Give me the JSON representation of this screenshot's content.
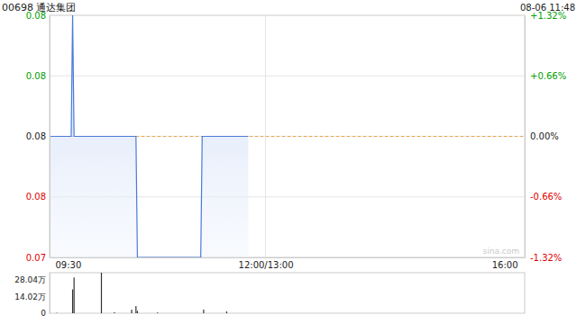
{
  "chart_data": [
    {
      "type": "line",
      "title": "00698 通达集团",
      "subtitle": "08-06 11:48",
      "annotation": "sina.com",
      "x": [
        0,
        15,
        16,
        17,
        60,
        61,
        105,
        106,
        138
      ],
      "series": [
        {
          "name": "通达集团",
          "color": "#4a7bd8",
          "values": [
            0.076,
            0.076,
            0.077,
            0.076,
            0.076,
            0.075,
            0.075,
            0.076,
            0.076
          ]
        }
      ],
      "xlim": [
        0,
        330
      ],
      "xticks": [
        {
          "value": 0,
          "label": "09:30"
        },
        {
          "value": 150,
          "label": "12:00/13:00"
        },
        {
          "value": 330,
          "label": "16:00"
        }
      ],
      "ylim": [
        0.075,
        0.077
      ],
      "yticks": [
        {
          "value": 0.077,
          "label": "0.08"
        },
        {
          "value": 0.0765,
          "label": "0.08"
        },
        {
          "value": 0.076,
          "label": "0.08"
        },
        {
          "value": 0.0755,
          "label": "0.08"
        },
        {
          "value": 0.075,
          "label": "0.07"
        }
      ],
      "y2lim": [
        -1.32,
        1.32
      ],
      "y2ticks": [
        {
          "value": 1.32,
          "label": "+1.32%"
        },
        {
          "value": 0.66,
          "label": "+0.66%"
        },
        {
          "value": 0,
          "label": "0.00%"
        },
        {
          "value": -0.66,
          "label": "-0.66%"
        },
        {
          "value": -1.32,
          "label": "-1.32%"
        }
      ],
      "grid": true
    },
    {
      "type": "bar",
      "x": [
        5,
        16,
        17,
        36,
        45,
        57,
        60,
        61,
        75,
        107,
        123
      ],
      "values": [
        3000,
        200000,
        300000,
        340000,
        8000,
        30000,
        60000,
        20000,
        6000,
        30000,
        15000
      ],
      "color": "#333333",
      "xlim": [
        0,
        330
      ],
      "ylim": [
        0,
        340000
      ],
      "yticks": [
        {
          "value": 0,
          "label": "0"
        },
        {
          "value": 140200,
          "label": "14.02万"
        },
        {
          "value": 280400,
          "label": "28.04万"
        }
      ],
      "tick_labels": "y"
    }
  ]
}
